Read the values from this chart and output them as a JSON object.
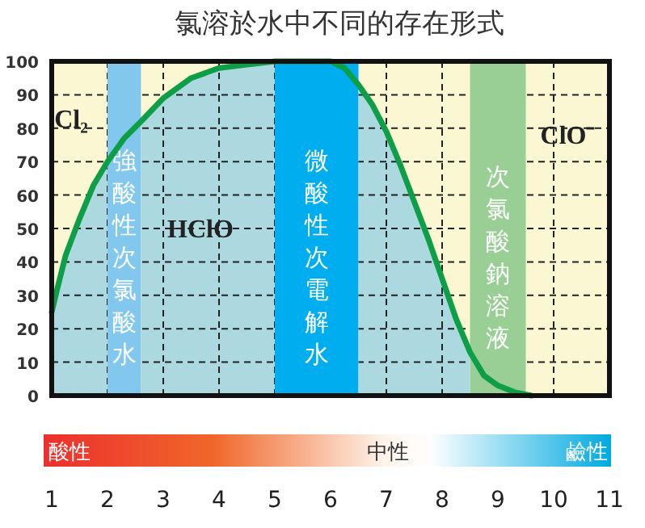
{
  "chart_data": {
    "type": "area",
    "title": "氯溶於水中不同的存在形式",
    "x": [
      1,
      1.1,
      1.25,
      1.5,
      1.75,
      2,
      2.3,
      2.6,
      3,
      3.5,
      4,
      4.5,
      5,
      5.5,
      6,
      6.25,
      6.5,
      6.75,
      7,
      7.25,
      7.5,
      7.75,
      8,
      8.25,
      8.5,
      8.75,
      9,
      9.3,
      9.6
    ],
    "series": [
      {
        "color": "#0e9e48",
        "values": [
          25,
          32,
          42,
          53,
          63,
          70,
          77,
          82,
          89,
          95,
          98,
          99,
          100,
          100,
          100,
          98,
          93,
          87,
          79,
          69,
          58,
          47,
          35,
          23,
          13,
          6,
          3,
          1,
          0
        ]
      }
    ],
    "xlim": [
      1,
      11
    ],
    "xticks": [
      1,
      2,
      3,
      4,
      5,
      6,
      7,
      8,
      9,
      10,
      11
    ],
    "ylim": [
      0,
      100
    ],
    "yticks": [
      0,
      10,
      20,
      30,
      40,
      50,
      60,
      70,
      80,
      90,
      100
    ],
    "grid": true,
    "line_style": "solid",
    "bands": [
      {
        "axis": "x",
        "from": 2,
        "to": 2.6,
        "label": "強酸性次氯酸水",
        "color": "#82c8ee"
      },
      {
        "axis": "x",
        "from": 5,
        "to": 6.5,
        "label": "微酸性次電解水",
        "color": "#00aeef"
      },
      {
        "axis": "x",
        "from": 8.5,
        "to": 9.5,
        "label": "次氯酸鈉溶液",
        "color": "#99cf94"
      }
    ],
    "annotations": [
      "Cl₂",
      "HClO",
      "ClO⁻",
      "酸性",
      "中性",
      "鹼性"
    ]
  }
}
